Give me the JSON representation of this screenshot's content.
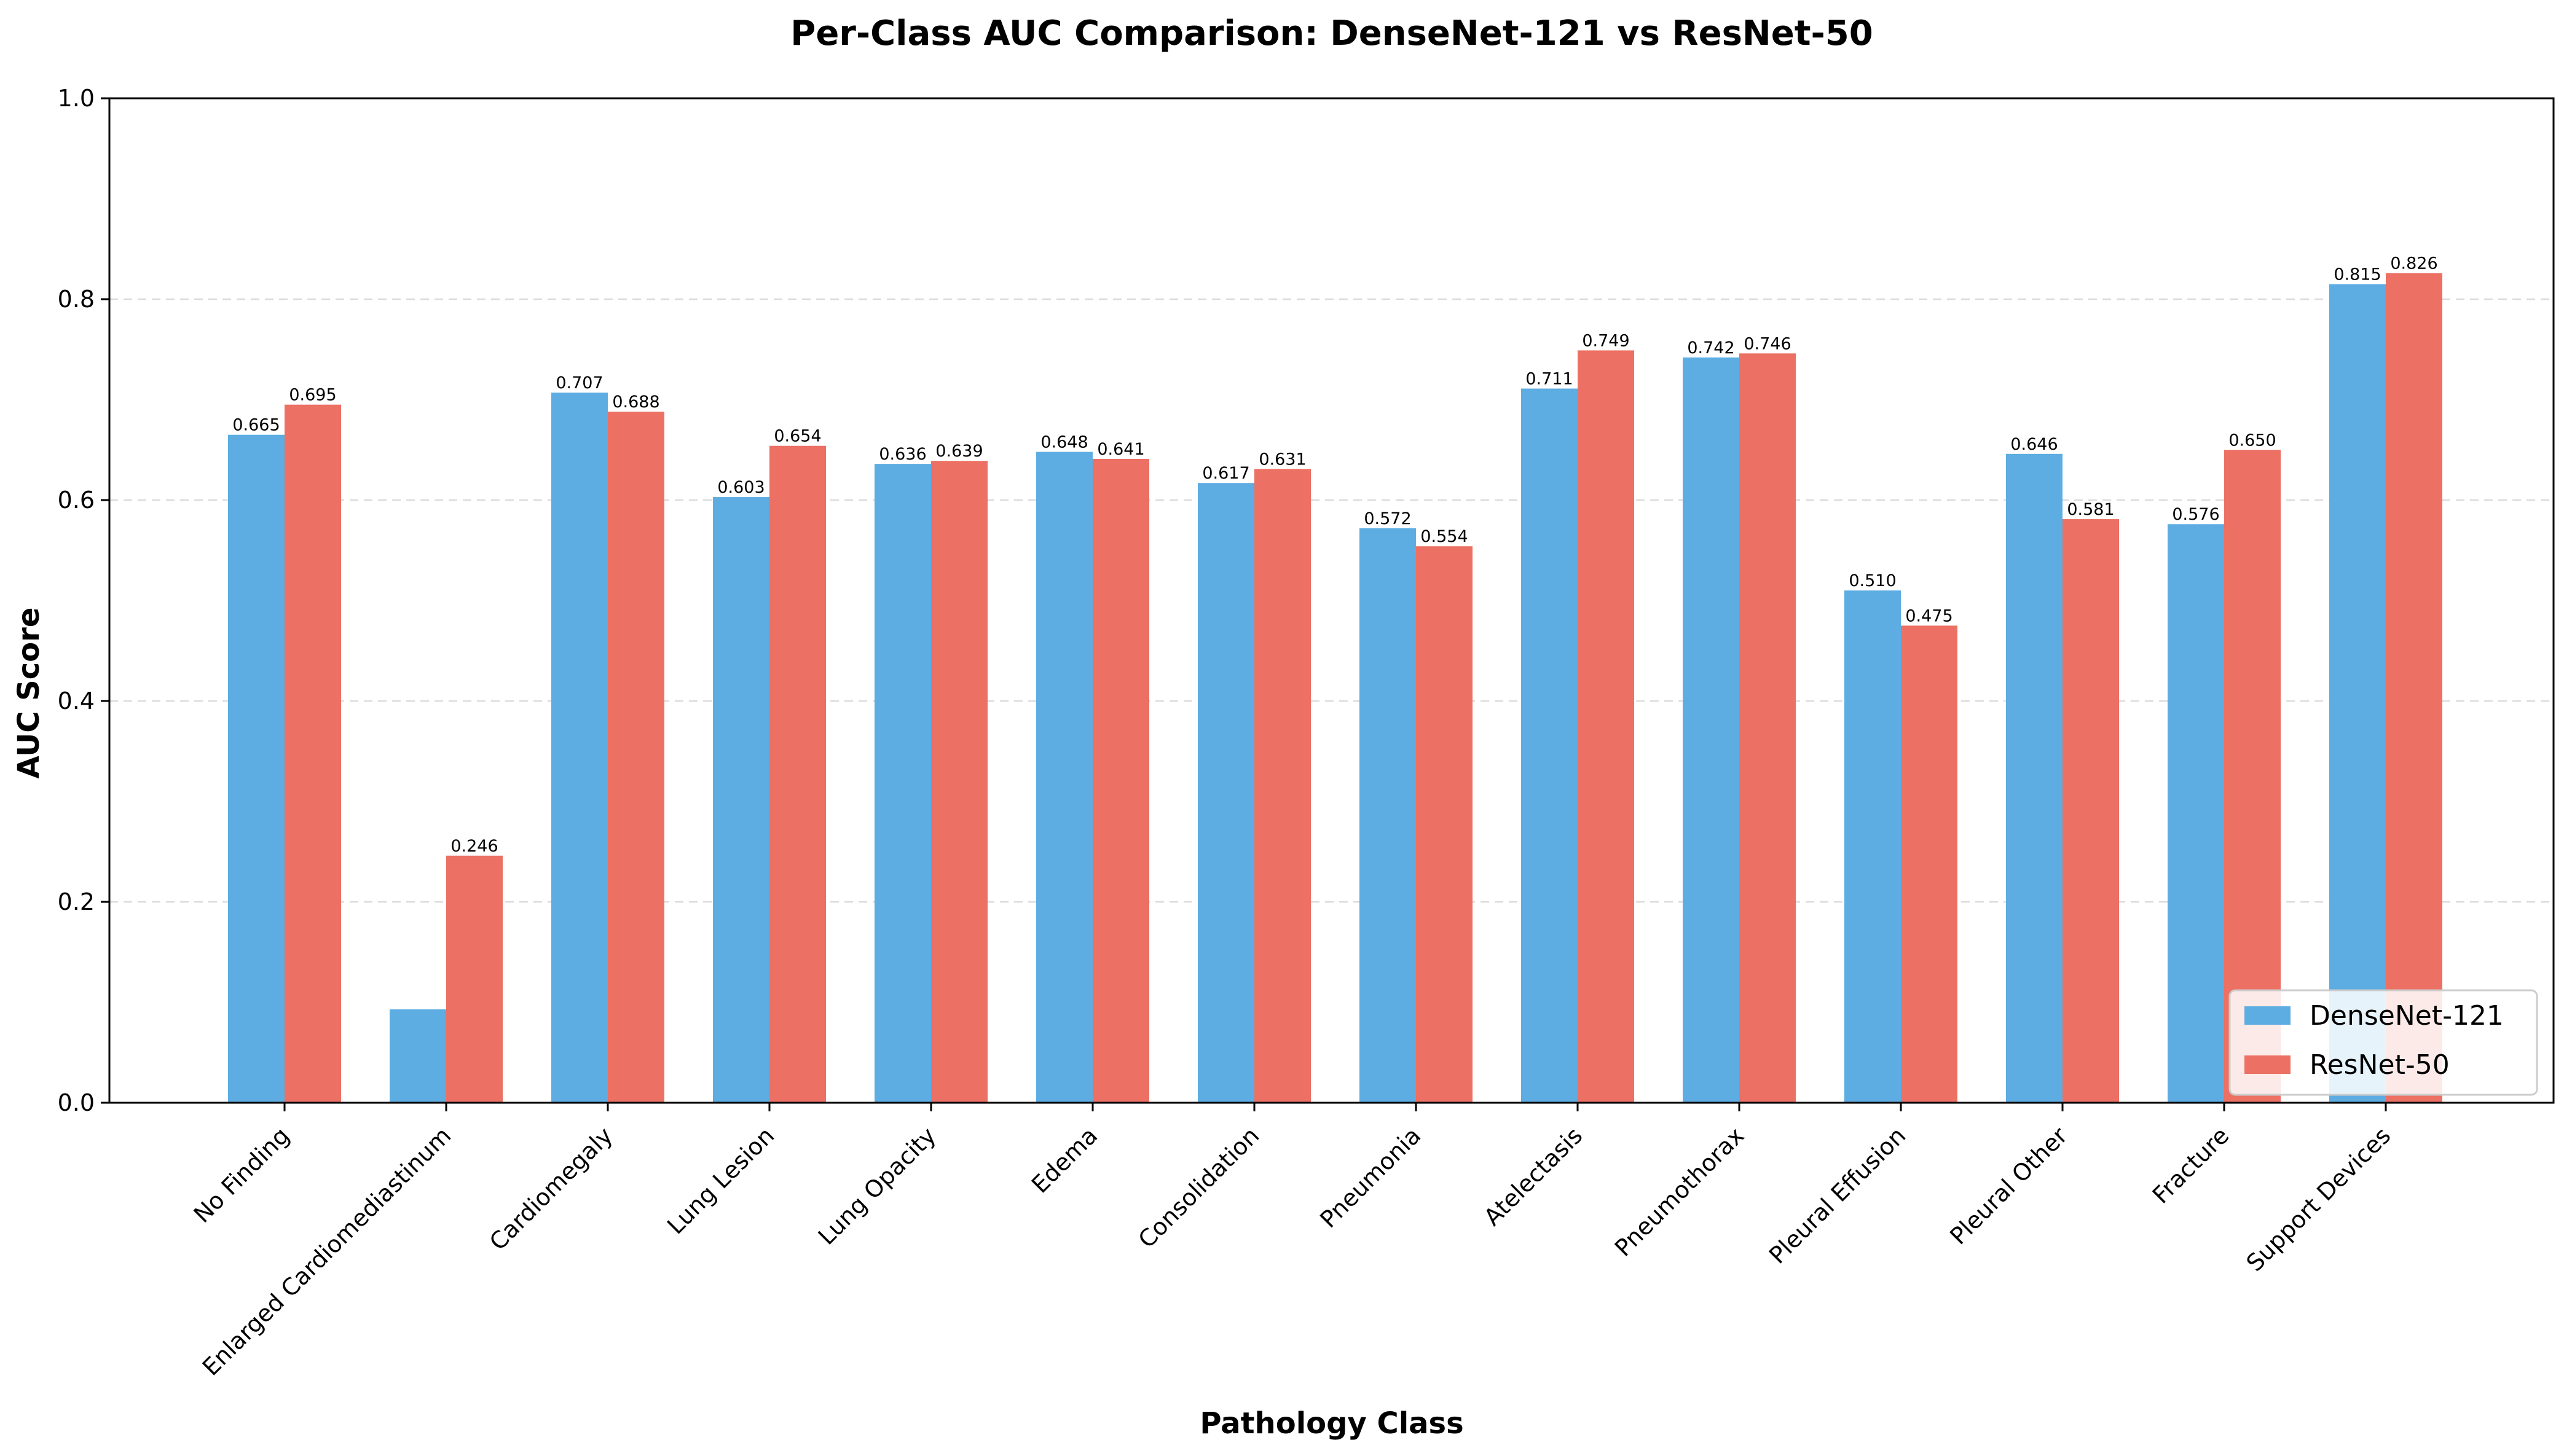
{
  "chart_data": {
    "type": "bar",
    "title": "Per-Class AUC Comparison: DenseNet-121 vs ResNet-50",
    "xlabel": "Pathology Class",
    "ylabel": "AUC Score",
    "ylim": [
      0,
      1.0
    ],
    "yticks": [
      "0.0",
      "0.2",
      "0.4",
      "0.6",
      "0.8",
      "1.0"
    ],
    "grid": "y-dashed",
    "legend_position": "bottom-right",
    "categories": [
      "No Finding",
      "Enlarged Cardiomediastinum",
      "Cardiomegaly",
      "Lung Lesion",
      "Lung Opacity",
      "Edema",
      "Consolidation",
      "Pneumonia",
      "Atelectasis",
      "Pneumothorax",
      "Pleural Effusion",
      "Pleural Other",
      "Fracture",
      "Support Devices"
    ],
    "series": [
      {
        "name": "DenseNet-121",
        "color": "#5DADE2",
        "values": [
          0.665,
          0.093,
          0.707,
          0.603,
          0.636,
          0.648,
          0.617,
          0.572,
          0.711,
          0.742,
          0.51,
          0.646,
          0.576,
          0.815
        ],
        "labels": [
          "0.665",
          "",
          "0.707",
          "0.603",
          "0.636",
          "0.648",
          "0.617",
          "0.572",
          "0.711",
          "0.742",
          "0.510",
          "0.646",
          "0.576",
          "0.815"
        ]
      },
      {
        "name": "ResNet-50",
        "color": "#EC7063",
        "values": [
          0.695,
          0.246,
          0.688,
          0.654,
          0.639,
          0.641,
          0.631,
          0.554,
          0.749,
          0.746,
          0.475,
          0.581,
          0.65,
          0.826
        ],
        "labels": [
          "0.695",
          "0.246",
          "0.688",
          "0.654",
          "0.639",
          "0.641",
          "0.631",
          "0.554",
          "0.749",
          "0.746",
          "0.475",
          "0.581",
          "0.650",
          "0.826"
        ]
      }
    ]
  }
}
